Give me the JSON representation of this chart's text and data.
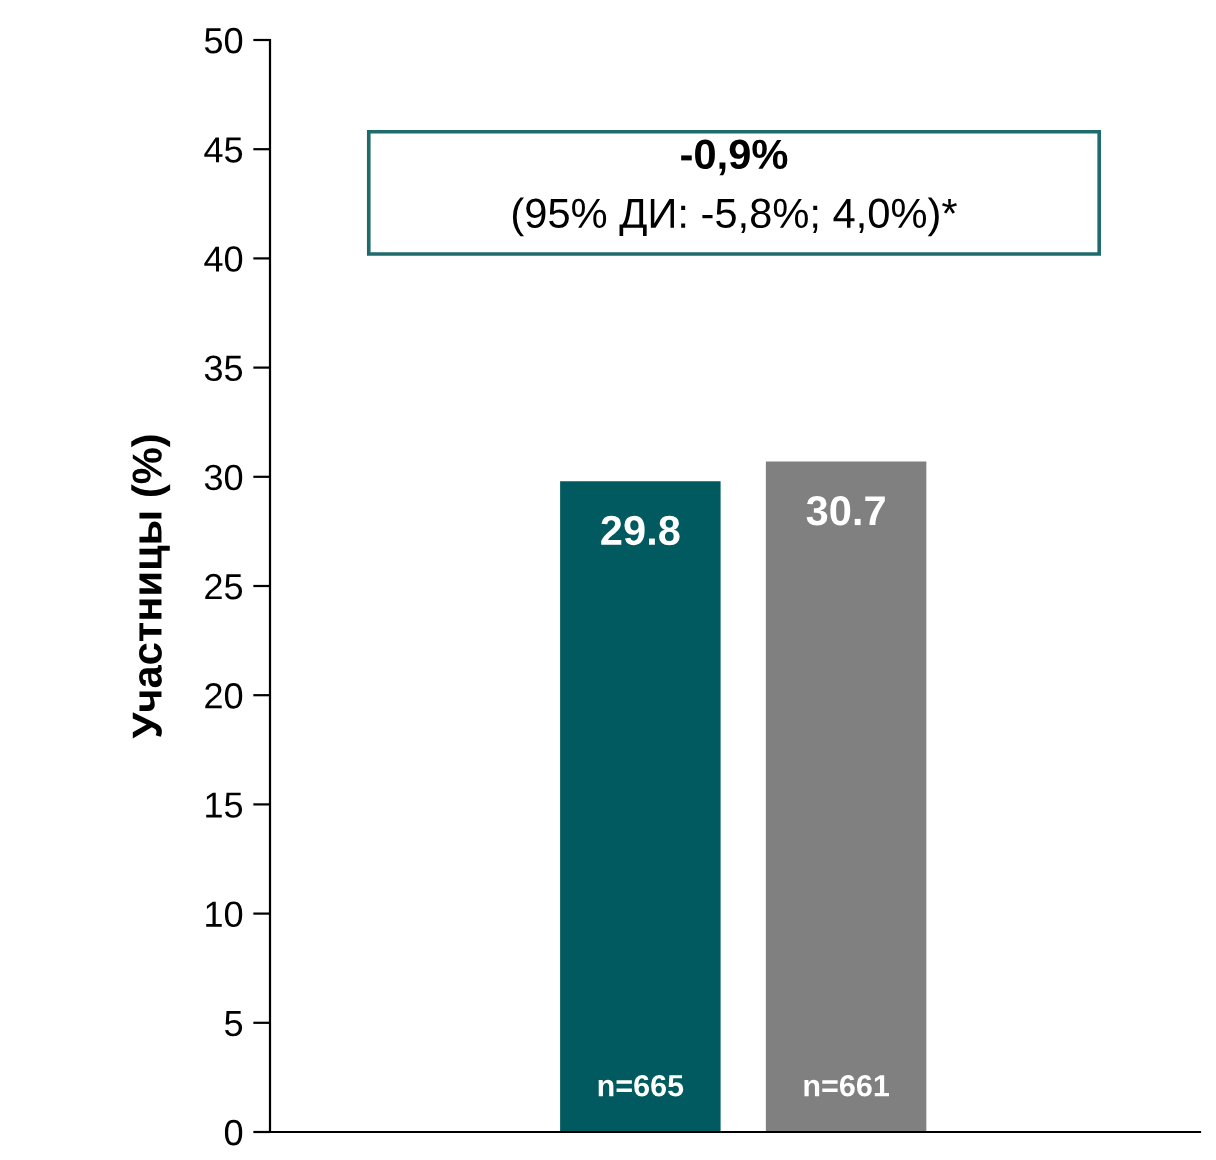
{
  "chart_data": {
    "type": "bar",
    "ylabel": "Участницы (%)",
    "categories": [
      null,
      null
    ],
    "values": [
      29.8,
      30.7
    ],
    "colors": [
      "#005a5f",
      "#808080"
    ],
    "ylim": [
      0,
      50
    ],
    "yticks": [
      0,
      5,
      10,
      15,
      20,
      25,
      30,
      35,
      40,
      45,
      50
    ],
    "grid": false,
    "legend": false,
    "data_labels": true,
    "annotations": [
      "-0,9%",
      "(95% ДИ: -5,8%; 4,0%)*",
      "n=665",
      "n=661"
    ]
  }
}
